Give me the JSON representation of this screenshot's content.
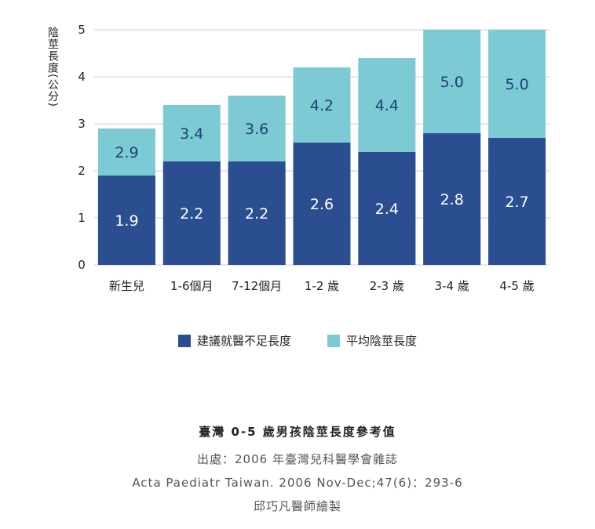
{
  "chart_data": {
    "type": "bar",
    "stacked": false,
    "overlay": true,
    "categories": [
      "新生兒",
      "1-6個月",
      "7-12個月",
      "1-2 歲",
      "2-3 歲",
      "3-4 歲",
      "4-5 歲"
    ],
    "series": [
      {
        "name": "建議就醫不足長度",
        "values": [
          1.9,
          2.2,
          2.2,
          2.6,
          2.4,
          2.8,
          2.7
        ],
        "color": "#2b4e91"
      },
      {
        "name": "平均陰莖長度",
        "values": [
          2.9,
          3.4,
          3.6,
          4.2,
          4.4,
          5.0,
          5.0
        ],
        "color": "#7ccad3"
      }
    ],
    "ylabel": "陰莖長度(公分)",
    "ylim": [
      0,
      5
    ],
    "yticks": [
      "0",
      "1",
      "2",
      "3",
      "4",
      "5"
    ],
    "grid": true,
    "legend_position": "bottom"
  },
  "caption": {
    "title": "臺灣 0-5 歲男孩陰莖長度參考值",
    "source": "出處：2006 年臺灣兒科醫學會雜誌",
    "citation": "Acta Paediatr Taiwan. 2006 Nov-Dec;47(6)：293-6",
    "author": "邱巧凡醫師繪製"
  }
}
